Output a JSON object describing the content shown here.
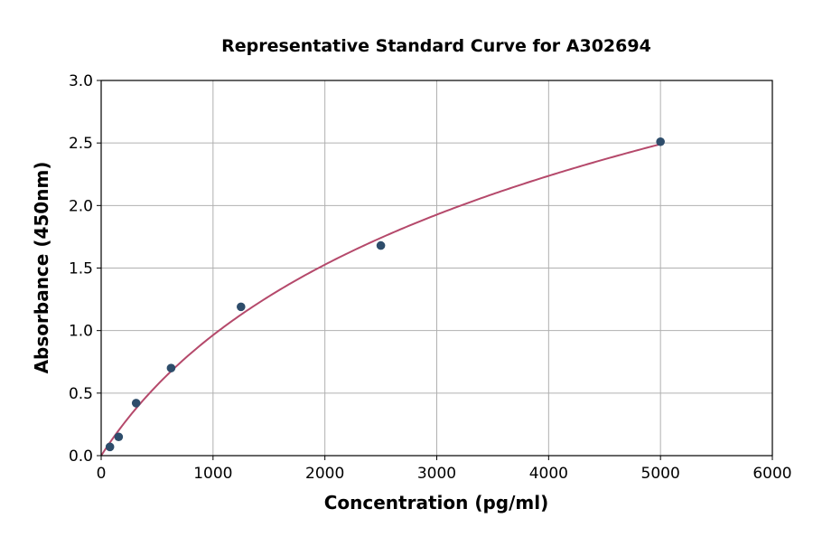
{
  "chart_data": {
    "type": "scatter",
    "title": "Representative Standard Curve for A302694",
    "xlabel": "Concentration (pg/ml)",
    "ylabel": "Absorbance (450nm)",
    "xlim": [
      0,
      6000
    ],
    "ylim": [
      0,
      3.0
    ],
    "xticks": [
      "0",
      "1000",
      "2000",
      "3000",
      "4000",
      "5000",
      "6000"
    ],
    "yticks": [
      "0.0",
      "0.5",
      "1.0",
      "1.5",
      "2.0",
      "2.5",
      "3.0"
    ],
    "grid": true,
    "points": [
      {
        "x": 78.125,
        "y": 0.07
      },
      {
        "x": 156.25,
        "y": 0.15
      },
      {
        "x": 312.5,
        "y": 0.42
      },
      {
        "x": 625,
        "y": 0.7
      },
      {
        "x": 1250,
        "y": 1.19
      },
      {
        "x": 2500,
        "y": 1.68
      },
      {
        "x": 5000,
        "y": 2.51
      }
    ],
    "has_fit_curve": true,
    "colors": {
      "points": "#2e4d6b",
      "curve": "#b5496b",
      "grid": "#b0b0b0"
    }
  }
}
